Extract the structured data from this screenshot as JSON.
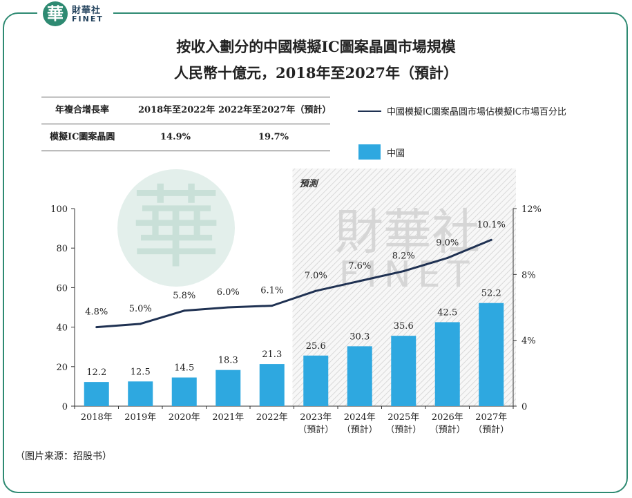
{
  "brand": {
    "logo_char": "華",
    "name_cn": "財華社",
    "name_en": "FINET",
    "watermark_cn": "財華社",
    "watermark_en": "FINET"
  },
  "title_line1": "按收入劃分的中國模擬IC圖案晶圓市場規模",
  "title_line2": "人民幣十億元，2018年至2027年（預計）",
  "cagr": {
    "header_label": "年複合增長率",
    "period1": "2018年至2022年",
    "period2": "2022年至2027年（預計）",
    "row_label": "模擬IC圖案晶圓",
    "value1": "14.9%",
    "value2": "19.7%"
  },
  "forecast_label": "預測",
  "source": "（图片来源：招股书）",
  "colors": {
    "bar": "#2ea8e0",
    "line": "#1f3152",
    "frame": "#2e8a72"
  },
  "chart_data": {
    "type": "bar+line",
    "categories": [
      "2018年",
      "2019年",
      "2020年",
      "2021年",
      "2022年",
      "2023年",
      "2024年",
      "2025年",
      "2026年",
      "2027年"
    ],
    "category_sublabels": [
      "",
      "",
      "",
      "",
      "",
      "（預計）",
      "（預計）",
      "（預計）",
      "（預計）",
      "（預計）"
    ],
    "series": [
      {
        "name": "中國",
        "type": "bar",
        "axis": "left",
        "values": [
          12.2,
          12.5,
          14.5,
          18.3,
          21.3,
          25.6,
          30.3,
          35.6,
          42.5,
          52.2
        ],
        "labels": [
          "12.2",
          "12.5",
          "14.5",
          "18.3",
          "21.3",
          "25.6",
          "30.3",
          "35.6",
          "42.5",
          "52.2"
        ]
      },
      {
        "name": "中國模擬IC圖案晶圓市場佔模擬IC市場百分比",
        "type": "line",
        "axis": "right",
        "values": [
          4.8,
          5.0,
          5.8,
          6.0,
          6.1,
          7.0,
          7.6,
          8.2,
          9.0,
          10.1
        ],
        "labels": [
          "4.8%",
          "5.0%",
          "5.8%",
          "6.0%",
          "6.1%",
          "7.0%",
          "7.6%",
          "8.2%",
          "9.0%",
          "10.1%"
        ]
      }
    ],
    "y_left": {
      "lim": [
        0,
        100
      ],
      "ticks": [
        "0",
        "20",
        "40",
        "60",
        "80",
        "100"
      ]
    },
    "y_right": {
      "lim": [
        0,
        12
      ],
      "ticks": [
        "0",
        "4%",
        "8%",
        "12%"
      ]
    },
    "forecast_start_index": 5,
    "grid": false,
    "legend": "top-right"
  }
}
